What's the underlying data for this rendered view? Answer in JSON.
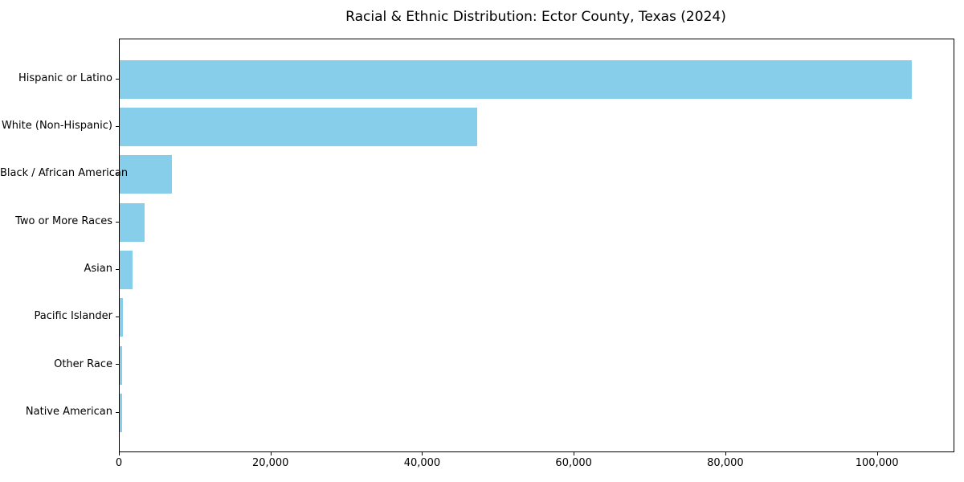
{
  "chart_data": {
    "type": "bar",
    "orientation": "horizontal",
    "title": "Racial & Ethnic Distribution: Ector County, Texas (2024)",
    "categories": [
      "Hispanic or Latino",
      "White (Non-Hispanic)",
      "Black / African American",
      "Two or More Races",
      "Asian",
      "Pacific Islander",
      "Other Race",
      "Native American"
    ],
    "values": [
      104500,
      47200,
      6900,
      3300,
      1700,
      430,
      300,
      280
    ],
    "xlabel": "",
    "ylabel": "",
    "xlim": [
      0,
      110000
    ],
    "x_ticks": [
      0,
      20000,
      40000,
      60000,
      80000,
      100000
    ],
    "x_tick_labels": [
      "0",
      "20,000",
      "40,000",
      "60,000",
      "80,000",
      "100,000"
    ],
    "bar_color": "#87CEEB",
    "background_color": "#ffffff",
    "grid": false,
    "legend": false
  }
}
